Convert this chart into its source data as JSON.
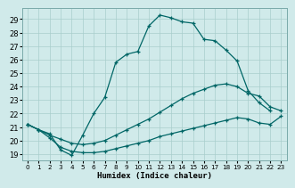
{
  "xlabel": "Humidex (Indice chaleur)",
  "bg_color": "#d0eaea",
  "line_color": "#006666",
  "grid_color": "#a8cecc",
  "xlim": [
    -0.5,
    23.5
  ],
  "ylim": [
    18.5,
    29.8
  ],
  "xticks": [
    0,
    1,
    2,
    3,
    4,
    5,
    6,
    7,
    8,
    9,
    10,
    11,
    12,
    13,
    14,
    15,
    16,
    17,
    18,
    19,
    20,
    21,
    22,
    23
  ],
  "yticks": [
    19,
    20,
    21,
    22,
    23,
    24,
    25,
    26,
    27,
    28,
    29
  ],
  "curve1_x": [
    0,
    1,
    2,
    3,
    4,
    5,
    6,
    7,
    8,
    9,
    10,
    11,
    12,
    13,
    14,
    15,
    16,
    17,
    18,
    19,
    20,
    21,
    22
  ],
  "curve1_y": [
    21.2,
    20.8,
    20.5,
    19.3,
    18.9,
    20.4,
    22.0,
    23.2,
    25.8,
    26.4,
    26.6,
    28.5,
    29.3,
    29.1,
    28.8,
    28.7,
    27.5,
    27.4,
    26.7,
    25.9,
    23.7,
    22.8,
    22.2
  ],
  "curve2_x": [
    0,
    1,
    2,
    3,
    4,
    5,
    6,
    7,
    8,
    9,
    10,
    11,
    12,
    13,
    14,
    15,
    16,
    17,
    18,
    19,
    20,
    21,
    22,
    23
  ],
  "curve2_y": [
    21.2,
    20.8,
    20.4,
    20.1,
    19.8,
    19.7,
    19.8,
    20.0,
    20.4,
    20.8,
    21.2,
    21.6,
    22.1,
    22.6,
    23.1,
    23.5,
    23.8,
    24.1,
    24.2,
    24.0,
    23.5,
    23.3,
    22.5,
    22.2
  ],
  "curve3_x": [
    0,
    1,
    2,
    3,
    4,
    5,
    6,
    7,
    8,
    9,
    10,
    11,
    12,
    13,
    14,
    15,
    16,
    17,
    18,
    19,
    20,
    21,
    22,
    23
  ],
  "curve3_y": [
    21.2,
    20.8,
    20.2,
    19.5,
    19.2,
    19.1,
    19.1,
    19.2,
    19.4,
    19.6,
    19.8,
    20.0,
    20.3,
    20.5,
    20.7,
    20.9,
    21.1,
    21.3,
    21.5,
    21.7,
    21.6,
    21.3,
    21.2,
    21.8
  ]
}
